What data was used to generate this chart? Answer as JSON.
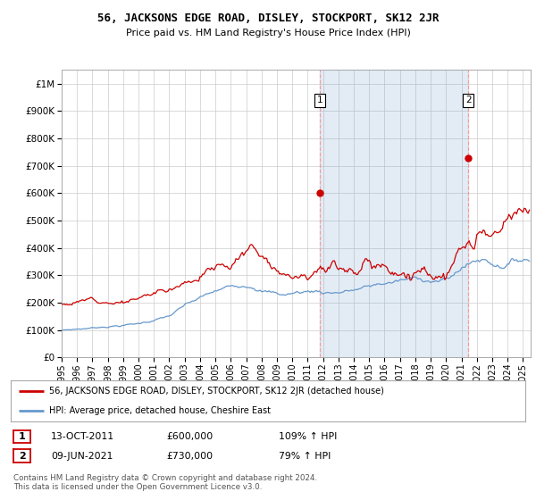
{
  "title": "56, JACKSONS EDGE ROAD, DISLEY, STOCKPORT, SK12 2JR",
  "subtitle": "Price paid vs. HM Land Registry's House Price Index (HPI)",
  "ylabel_ticks": [
    "£0",
    "£100K",
    "£200K",
    "£300K",
    "£400K",
    "£500K",
    "£600K",
    "£700K",
    "£800K",
    "£900K",
    "£1M"
  ],
  "ytick_vals": [
    0,
    100000,
    200000,
    300000,
    400000,
    500000,
    600000,
    700000,
    800000,
    900000,
    1000000
  ],
  "ylim": [
    0,
    1050000
  ],
  "xlim_start": 1995.0,
  "xlim_end": 2025.5,
  "red_color": "#cc0000",
  "blue_color": "#6699cc",
  "blue_fill_color": "#ddeeff",
  "dashed_color": "#ff9999",
  "background_color": "#ffffff",
  "grid_color": "#cccccc",
  "transaction1_x": 2011.79,
  "transaction1_y": 600000,
  "transaction1_label": "1",
  "transaction2_x": 2021.44,
  "transaction2_y": 730000,
  "transaction2_label": "2",
  "legend_red_label": "56, JACKSONS EDGE ROAD, DISLEY, STOCKPORT, SK12 2JR (detached house)",
  "legend_blue_label": "HPI: Average price, detached house, Cheshire East",
  "annotation1_date": "13-OCT-2011",
  "annotation1_price": "£600,000",
  "annotation1_hpi": "109% ↑ HPI",
  "annotation2_date": "09-JUN-2021",
  "annotation2_price": "£730,000",
  "annotation2_hpi": "79% ↑ HPI",
  "footer": "Contains HM Land Registry data © Crown copyright and database right 2024.\nThis data is licensed under the Open Government Licence v3.0.",
  "xtick_years": [
    1995,
    1996,
    1997,
    1998,
    1999,
    2000,
    2001,
    2002,
    2003,
    2004,
    2005,
    2006,
    2007,
    2008,
    2009,
    2010,
    2011,
    2012,
    2013,
    2014,
    2015,
    2016,
    2017,
    2018,
    2019,
    2020,
    2021,
    2022,
    2023,
    2024,
    2025
  ]
}
